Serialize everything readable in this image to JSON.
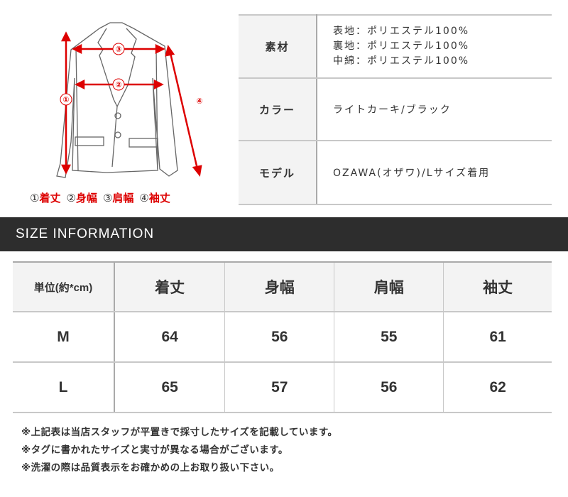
{
  "diagram": {
    "markers": [
      "①",
      "②",
      "③",
      "④"
    ],
    "legend": [
      {
        "num": "①",
        "label": "着丈"
      },
      {
        "num": "②",
        "label": "身幅"
      },
      {
        "num": "③",
        "label": "肩幅"
      },
      {
        "num": "④",
        "label": "袖丈"
      }
    ],
    "accent_color": "#d00000"
  },
  "info": {
    "rows": [
      {
        "label": "素材",
        "lines": [
          "表地：ポリエステル100%",
          "裏地：ポリエステル100%",
          "中綿：ポリエステル100%"
        ]
      },
      {
        "label": "カラー",
        "lines": [
          "ライトカーキ/ブラック"
        ]
      },
      {
        "label": "モデル",
        "lines": [
          "OZAWA(オザワ)/Lサイズ着用"
        ]
      }
    ]
  },
  "section_title": "SIZE INFORMATION",
  "size_table": {
    "headers": [
      "単位(約*cm)",
      "着丈",
      "身幅",
      "肩幅",
      "袖丈"
    ],
    "rows": [
      [
        "M",
        "64",
        "56",
        "55",
        "61"
      ],
      [
        "L",
        "65",
        "57",
        "56",
        "62"
      ]
    ]
  },
  "notes": [
    "※上記表は当店スタッフが平置きで採寸したサイズを記載しています。",
    "※タグに書かれたサイズと実寸が異なる場合がございます。",
    "※洗濯の際は品質表示をお確かめの上お取り扱い下さい。"
  ]
}
